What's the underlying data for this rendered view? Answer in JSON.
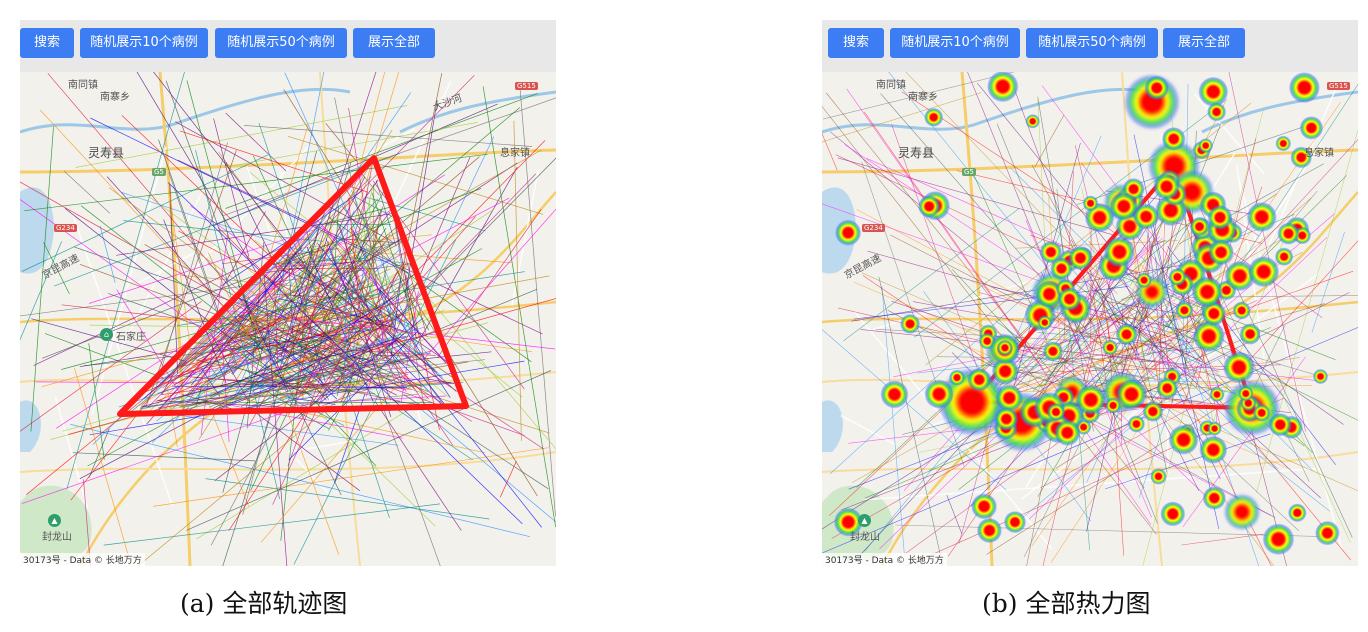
{
  "toolbar": {
    "buttons": {
      "search": "搜索",
      "random10": "随机展示10个病例",
      "random50": "随机展示50个病例",
      "all": "展示全部"
    }
  },
  "map_labels": {
    "nanjiu": "南同镇",
    "nanzhai": "南寨乡",
    "lingshou": "灵寿县",
    "jingkun": "京昆高速",
    "shijiazhuang": "石家庄",
    "fenglong": "封龙山",
    "dashahe": "大沙河",
    "xijia": "息家镇"
  },
  "attribution": "30173号 - Data © 长地万方",
  "captions": {
    "a": "(a) 全部轨迹图",
    "b": "(b) 全部热力图"
  },
  "colors": {
    "button": "#3d7df4",
    "highlight_path": "#ff1a1a",
    "heat_core": "#ff0000",
    "heat_mid": "#ffff00",
    "heat_outer": "#2bd64a",
    "heat_edge": "#4a6bff"
  }
}
